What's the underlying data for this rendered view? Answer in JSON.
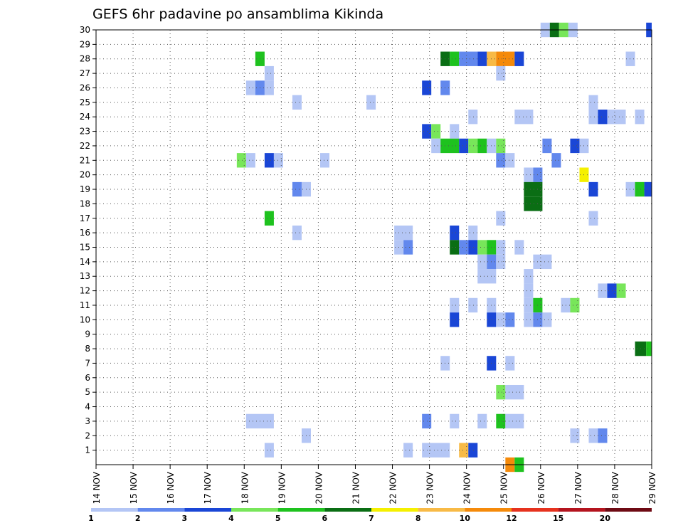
{
  "chart_data": {
    "type": "heatmap",
    "title": "GEFS 6hr padavine po ansamblima Kikinda",
    "xlabel": "",
    "ylabel": "",
    "x_tick_labels": [
      "14 NOV",
      "15 NOV",
      "16 NOV",
      "17 NOV",
      "18 NOV",
      "19 NOV",
      "20 NOV",
      "21 NOV",
      "22 NOV",
      "23 NOV",
      "24 NOV",
      "25 NOV",
      "26 NOV",
      "27 NOV",
      "28 NOV",
      "29 NOV"
    ],
    "y_tick_labels": [
      "1",
      "2",
      "3",
      "4",
      "5",
      "6",
      "7",
      "8",
      "9",
      "10",
      "11",
      "12",
      "13",
      "14",
      "15",
      "16",
      "17",
      "18",
      "19",
      "20",
      "21",
      "22",
      "23",
      "24",
      "25",
      "26",
      "27",
      "28",
      "29",
      "30"
    ],
    "x_range_days": [
      14,
      29
    ],
    "y_range": [
      0,
      30
    ],
    "grid": true,
    "colorbar": {
      "labels": [
        "1",
        "2",
        "3",
        "4",
        "5",
        "6",
        "7",
        "8",
        "10",
        "12",
        "15",
        "20"
      ],
      "colors": [
        "#b4c6f5",
        "#6288ed",
        "#1a46d6",
        "#78e65a",
        "#1ec21e",
        "#0a6e14",
        "#f5f000",
        "#f8ba46",
        "#f58a0a",
        "#e6321e",
        "#b4141e",
        "#6e0a14"
      ]
    },
    "cells_description": "each cell = [member, start_day, end_day, color_class (1-12 per colorbar)]",
    "cells": [
      [
        30,
        26.0,
        26.25,
        1
      ],
      [
        30,
        26.25,
        26.5,
        6
      ],
      [
        30,
        26.5,
        26.75,
        4
      ],
      [
        30,
        26.75,
        27.0,
        1
      ],
      [
        30,
        28.85,
        29.0,
        3
      ],
      [
        28,
        18.3,
        18.55,
        5
      ],
      [
        28,
        23.3,
        23.55,
        6
      ],
      [
        28,
        23.55,
        23.8,
        5
      ],
      [
        28,
        23.8,
        24.3,
        2
      ],
      [
        28,
        24.3,
        24.55,
        3
      ],
      [
        28,
        24.55,
        24.8,
        8
      ],
      [
        28,
        24.8,
        25.3,
        9
      ],
      [
        28,
        25.3,
        25.55,
        3
      ],
      [
        28,
        28.3,
        28.55,
        1
      ],
      [
        27,
        18.55,
        18.8,
        1
      ],
      [
        27,
        24.8,
        25.05,
        1
      ],
      [
        26,
        18.05,
        18.3,
        1
      ],
      [
        26,
        18.3,
        18.55,
        2
      ],
      [
        26,
        18.55,
        18.8,
        1
      ],
      [
        26,
        22.8,
        23.05,
        3
      ],
      [
        26,
        23.3,
        23.55,
        2
      ],
      [
        25,
        19.3,
        19.55,
        1
      ],
      [
        25,
        21.3,
        21.55,
        1
      ],
      [
        25,
        27.3,
        27.55,
        1
      ],
      [
        24,
        24.05,
        24.3,
        1
      ],
      [
        24,
        25.3,
        25.8,
        1
      ],
      [
        24,
        27.3,
        27.55,
        1
      ],
      [
        24,
        27.55,
        27.8,
        3
      ],
      [
        24,
        27.8,
        28.3,
        1
      ],
      [
        24,
        28.55,
        28.8,
        1
      ],
      [
        23,
        22.8,
        23.05,
        3
      ],
      [
        23,
        23.05,
        23.3,
        4
      ],
      [
        23,
        23.55,
        23.8,
        1
      ],
      [
        22,
        23.05,
        23.3,
        1
      ],
      [
        22,
        23.3,
        23.8,
        5
      ],
      [
        22,
        23.8,
        24.05,
        3
      ],
      [
        22,
        24.05,
        24.3,
        4
      ],
      [
        22,
        24.3,
        24.55,
        5
      ],
      [
        22,
        24.55,
        24.8,
        1
      ],
      [
        22,
        24.8,
        25.05,
        4
      ],
      [
        22,
        26.05,
        26.3,
        2
      ],
      [
        22,
        26.8,
        27.05,
        3
      ],
      [
        22,
        27.05,
        27.3,
        1
      ],
      [
        21,
        17.8,
        18.05,
        4
      ],
      [
        21,
        18.05,
        18.3,
        1
      ],
      [
        21,
        18.55,
        18.8,
        3
      ],
      [
        21,
        18.8,
        19.05,
        1
      ],
      [
        21,
        20.05,
        20.3,
        1
      ],
      [
        21,
        24.8,
        25.05,
        2
      ],
      [
        21,
        25.05,
        25.3,
        1
      ],
      [
        21,
        26.3,
        26.55,
        2
      ],
      [
        20,
        25.55,
        25.8,
        1
      ],
      [
        20,
        25.8,
        26.05,
        2
      ],
      [
        20,
        27.05,
        27.3,
        7
      ],
      [
        19,
        19.3,
        19.55,
        2
      ],
      [
        19,
        19.55,
        19.8,
        1
      ],
      [
        19,
        25.55,
        26.05,
        6
      ],
      [
        19,
        27.3,
        27.55,
        3
      ],
      [
        19,
        28.3,
        28.55,
        1
      ],
      [
        19,
        28.55,
        28.8,
        5
      ],
      [
        19,
        28.8,
        29.0,
        3
      ],
      [
        18,
        25.55,
        26.05,
        6
      ],
      [
        17,
        18.55,
        18.8,
        5
      ],
      [
        17,
        24.8,
        25.05,
        1
      ],
      [
        17,
        27.3,
        27.55,
        1
      ],
      [
        16,
        19.3,
        19.55,
        1
      ],
      [
        16,
        22.05,
        22.55,
        1
      ],
      [
        16,
        23.55,
        23.8,
        3
      ],
      [
        16,
        24.05,
        24.3,
        1
      ],
      [
        15,
        22.05,
        22.3,
        1
      ],
      [
        15,
        22.3,
        22.55,
        2
      ],
      [
        15,
        23.55,
        23.8,
        6
      ],
      [
        15,
        23.8,
        24.05,
        2
      ],
      [
        15,
        24.05,
        24.3,
        3
      ],
      [
        15,
        24.3,
        24.55,
        4
      ],
      [
        15,
        24.55,
        24.8,
        5
      ],
      [
        15,
        24.8,
        25.05,
        1
      ],
      [
        15,
        25.3,
        25.55,
        1
      ],
      [
        14,
        24.3,
        24.55,
        1
      ],
      [
        14,
        24.55,
        24.8,
        2
      ],
      [
        14,
        24.8,
        25.05,
        1
      ],
      [
        14,
        25.8,
        26.3,
        1
      ],
      [
        13,
        24.3,
        24.8,
        1
      ],
      [
        13,
        25.55,
        25.8,
        1
      ],
      [
        12,
        25.55,
        25.8,
        1
      ],
      [
        12,
        27.55,
        27.8,
        1
      ],
      [
        12,
        27.8,
        28.05,
        3
      ],
      [
        12,
        28.05,
        28.3,
        4
      ],
      [
        11,
        23.55,
        23.8,
        1
      ],
      [
        11,
        24.05,
        24.3,
        1
      ],
      [
        11,
        24.55,
        24.8,
        1
      ],
      [
        11,
        25.55,
        25.8,
        1
      ],
      [
        11,
        25.8,
        26.05,
        5
      ],
      [
        11,
        26.55,
        26.8,
        1
      ],
      [
        11,
        26.8,
        27.05,
        4
      ],
      [
        10,
        23.55,
        23.8,
        3
      ],
      [
        10,
        24.55,
        24.8,
        3
      ],
      [
        10,
        24.8,
        25.05,
        1
      ],
      [
        10,
        25.05,
        25.3,
        2
      ],
      [
        10,
        25.55,
        25.8,
        1
      ],
      [
        10,
        25.8,
        26.05,
        2
      ],
      [
        10,
        26.05,
        26.3,
        1
      ],
      [
        8,
        28.55,
        28.85,
        6
      ],
      [
        8,
        28.85,
        29.0,
        5
      ],
      [
        7,
        23.3,
        23.55,
        1
      ],
      [
        7,
        24.55,
        24.8,
        3
      ],
      [
        7,
        25.05,
        25.3,
        1
      ],
      [
        5,
        24.8,
        25.05,
        4
      ],
      [
        5,
        25.05,
        25.55,
        1
      ],
      [
        3,
        18.05,
        18.8,
        1
      ],
      [
        3,
        22.8,
        23.05,
        2
      ],
      [
        3,
        23.55,
        23.8,
        1
      ],
      [
        3,
        24.3,
        24.55,
        1
      ],
      [
        3,
        24.8,
        25.05,
        5
      ],
      [
        3,
        25.05,
        25.55,
        1
      ],
      [
        2,
        19.55,
        19.8,
        1
      ],
      [
        2,
        26.8,
        27.05,
        1
      ],
      [
        2,
        27.3,
        27.55,
        1
      ],
      [
        2,
        27.55,
        27.8,
        2
      ],
      [
        1,
        18.55,
        18.8,
        1
      ],
      [
        1,
        22.3,
        22.55,
        1
      ],
      [
        1,
        22.8,
        23.55,
        1
      ],
      [
        1,
        23.8,
        24.05,
        8
      ],
      [
        1,
        24.05,
        24.3,
        3
      ],
      [
        0,
        25.05,
        25.3,
        9
      ],
      [
        0,
        25.3,
        25.55,
        5
      ]
    ]
  }
}
